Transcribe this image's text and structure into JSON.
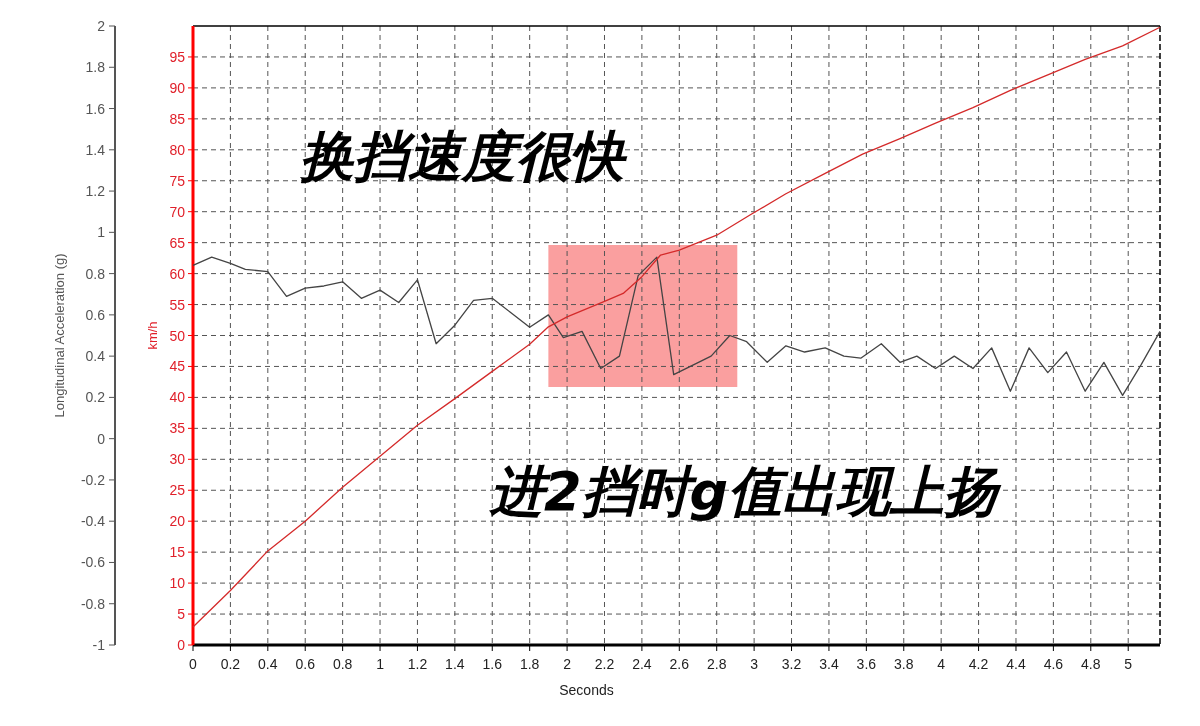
{
  "chart_data": {
    "type": "line",
    "xlabel": "Seconds",
    "ylabel": "Longitudinal Acceleration (g)",
    "y2label": "km/h",
    "annotations": [
      "换挡速度很快",
      "进2挡时g值出现上扬"
    ],
    "xlim": [
      0,
      5.17
    ],
    "xticks": [
      0,
      0.2,
      0.4,
      0.6,
      0.8,
      1,
      1.2,
      1.4,
      1.6,
      1.8,
      2,
      2.2,
      2.4,
      2.6,
      2.8,
      3,
      3.2,
      3.4,
      3.6,
      3.8,
      4,
      4.2,
      4.4,
      4.6,
      4.8,
      5
    ],
    "ylim": [
      -1,
      2
    ],
    "yticks": [
      -1,
      -0.8,
      -0.6,
      -0.4,
      -0.2,
      0,
      0.2,
      0.4,
      0.6,
      0.8,
      1,
      1.2,
      1.4,
      1.6,
      1.8,
      2
    ],
    "y2lim": [
      0,
      100
    ],
    "y2ticks": [
      0,
      5,
      10,
      15,
      20,
      25,
      30,
      35,
      40,
      45,
      50,
      55,
      60,
      65,
      70,
      75,
      80,
      85,
      90,
      95
    ],
    "grid": true,
    "bands": [
      {
        "axis": "x",
        "from": 1.9,
        "to": 2.91,
        "color": "#f98e8e"
      }
    ],
    "series": [
      {
        "color": "#444444",
        "axis": "y",
        "x": [
          0,
          0.1,
          0.2,
          0.28,
          0.4,
          0.5,
          0.6,
          0.7,
          0.8,
          0.9,
          1.0,
          1.1,
          1.2,
          1.3,
          1.4,
          1.5,
          1.6,
          1.7,
          1.8,
          1.9,
          1.98,
          2.08,
          2.18,
          2.28,
          2.38,
          2.48,
          2.57,
          2.77,
          2.87,
          2.96,
          3.07,
          3.17,
          3.27,
          3.38,
          3.48,
          3.57,
          3.68,
          3.78,
          3.87,
          3.97,
          4.07,
          4.17,
          4.27,
          4.37,
          4.47,
          4.57,
          4.67,
          4.77,
          4.87,
          4.97,
          5.07,
          5.17
        ],
        "values": [
          0.84,
          0.88,
          0.85,
          0.82,
          0.81,
          0.69,
          0.73,
          0.74,
          0.76,
          0.68,
          0.72,
          0.66,
          0.77,
          0.46,
          0.55,
          0.67,
          0.68,
          0.61,
          0.54,
          0.6,
          0.49,
          0.52,
          0.34,
          0.4,
          0.79,
          0.88,
          0.31,
          0.4,
          0.5,
          0.47,
          0.37,
          0.45,
          0.42,
          0.44,
          0.4,
          0.39,
          0.46,
          0.37,
          0.4,
          0.34,
          0.4,
          0.34,
          0.44,
          0.23,
          0.44,
          0.32,
          0.42,
          0.23,
          0.37,
          0.21,
          0.36,
          0.52
        ]
      },
      {
        "color": "#d42a2a",
        "axis": "y2",
        "x": [
          0,
          0.2,
          0.4,
          0.6,
          0.8,
          1.0,
          1.2,
          1.4,
          1.6,
          1.8,
          1.9,
          2.0,
          2.2,
          2.3,
          2.4,
          2.5,
          2.6,
          2.8,
          2.98,
          3.17,
          3.38,
          3.58,
          3.78,
          3.97,
          4.17,
          4.37,
          4.57,
          4.77,
          4.97,
          5.17
        ],
        "values": [
          2.9,
          8.8,
          15.2,
          20,
          25.5,
          30.5,
          35.5,
          39.8,
          44.2,
          48.6,
          51.4,
          53,
          55.5,
          56.8,
          59.5,
          63,
          63.8,
          66.2,
          69.5,
          72.9,
          76.2,
          79.3,
          81.8,
          84.3,
          86.8,
          89.6,
          92.1,
          94.6,
          96.8,
          99.8
        ]
      }
    ]
  }
}
